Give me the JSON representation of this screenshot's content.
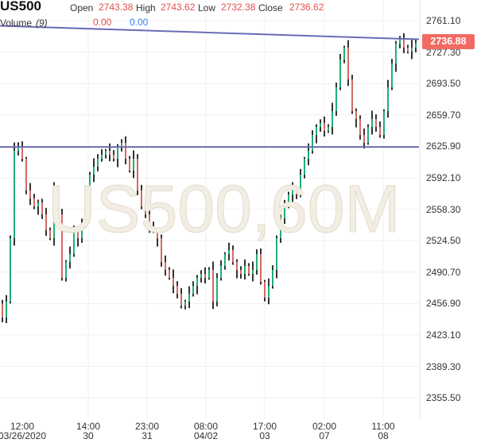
{
  "header": {
    "symbol": "US500",
    "open_label": "Open",
    "open": "2743.38",
    "high_label": "High",
    "high": "2743.62",
    "low_label": "Low",
    "low": "2732.38",
    "close_label": "Close",
    "close": "2736.62",
    "volume_label": "Volume",
    "volume_period": "(9)",
    "volume_value_1": "0.00",
    "volume_value_2": "0.00"
  },
  "watermark": "US500,60M",
  "colors": {
    "up": "#10c27a",
    "down": "#f26a62",
    "wick": "#000000",
    "hline": "#6b6bb8",
    "grid": "#efefef",
    "price_tag": "#f26a62"
  },
  "chart_data": {
    "type": "candlestick",
    "title": "US500",
    "ylim": [
      2330,
      2780
    ],
    "yticks": [
      "2761.10",
      "2727.30",
      "2693.50",
      "2659.70",
      "2625.90",
      "2592.10",
      "2558.30",
      "2524.50",
      "2490.70",
      "2456.90",
      "2423.10",
      "2389.30",
      "2355.50"
    ],
    "xticks": [
      {
        "time": "12:00",
        "date": "03/26/2020"
      },
      {
        "time": "14:00",
        "date": "30"
      },
      {
        "time": "23:00",
        "date": "31"
      },
      {
        "time": "08:00",
        "date": "04/02"
      },
      {
        "time": "17:00",
        "date": "03"
      },
      {
        "time": "02:00",
        "date": "07"
      },
      {
        "time": "11:00",
        "date": "08"
      }
    ],
    "close": [
      2441.9,
      2459.0,
      2527.2,
      2621.1,
      2625.4,
      2612.6,
      2578.5,
      2569.9,
      2561.4,
      2565.6,
      2552.8,
      2535.8,
      2527.2,
      2578.5,
      2552.8,
      2484.6,
      2501.6,
      2510.2,
      2535.8,
      2527.2,
      2544.3,
      2565.6,
      2595.5,
      2604.1,
      2612.6,
      2616.9,
      2621.1,
      2616.9,
      2612.6,
      2625.4,
      2629.7,
      2612.6,
      2599.8,
      2612.6,
      2578.5,
      2561.4,
      2552.8,
      2540.0,
      2535.8,
      2527.2,
      2501.6,
      2493.1,
      2484.6,
      2476.0,
      2467.5,
      2454.7,
      2459.0,
      2467.5,
      2476.0,
      2484.6,
      2488.8,
      2484.6,
      2493.1,
      2459.0,
      2484.6,
      2497.4,
      2510.2,
      2514.4,
      2501.6,
      2493.1,
      2488.8,
      2497.4,
      2488.8,
      2493.1,
      2510.2,
      2480.3,
      2463.2,
      2476.0,
      2493.1,
      2527.2,
      2548.6,
      2561.4,
      2574.2,
      2578.5,
      2574.2,
      2595.5,
      2612.6,
      2621.1,
      2638.2,
      2646.7,
      2651.0,
      2642.5,
      2646.7,
      2663.8,
      2689.4,
      2719.3,
      2732.1,
      2697.9,
      2663.8,
      2655.3,
      2638.2,
      2629.7,
      2646.7,
      2655.3,
      2646.7,
      2638.2,
      2663.8,
      2689.4,
      2715.0,
      2736.3,
      2740.6,
      2732.1,
      2727.8,
      2732.1,
      2736.9
    ],
    "horizontal_lines": [
      {
        "start": 2755.5,
        "end": 2741.0
      },
      {
        "start": 2625.3,
        "end": 2625.3
      }
    ],
    "last_price": "2736.88"
  }
}
